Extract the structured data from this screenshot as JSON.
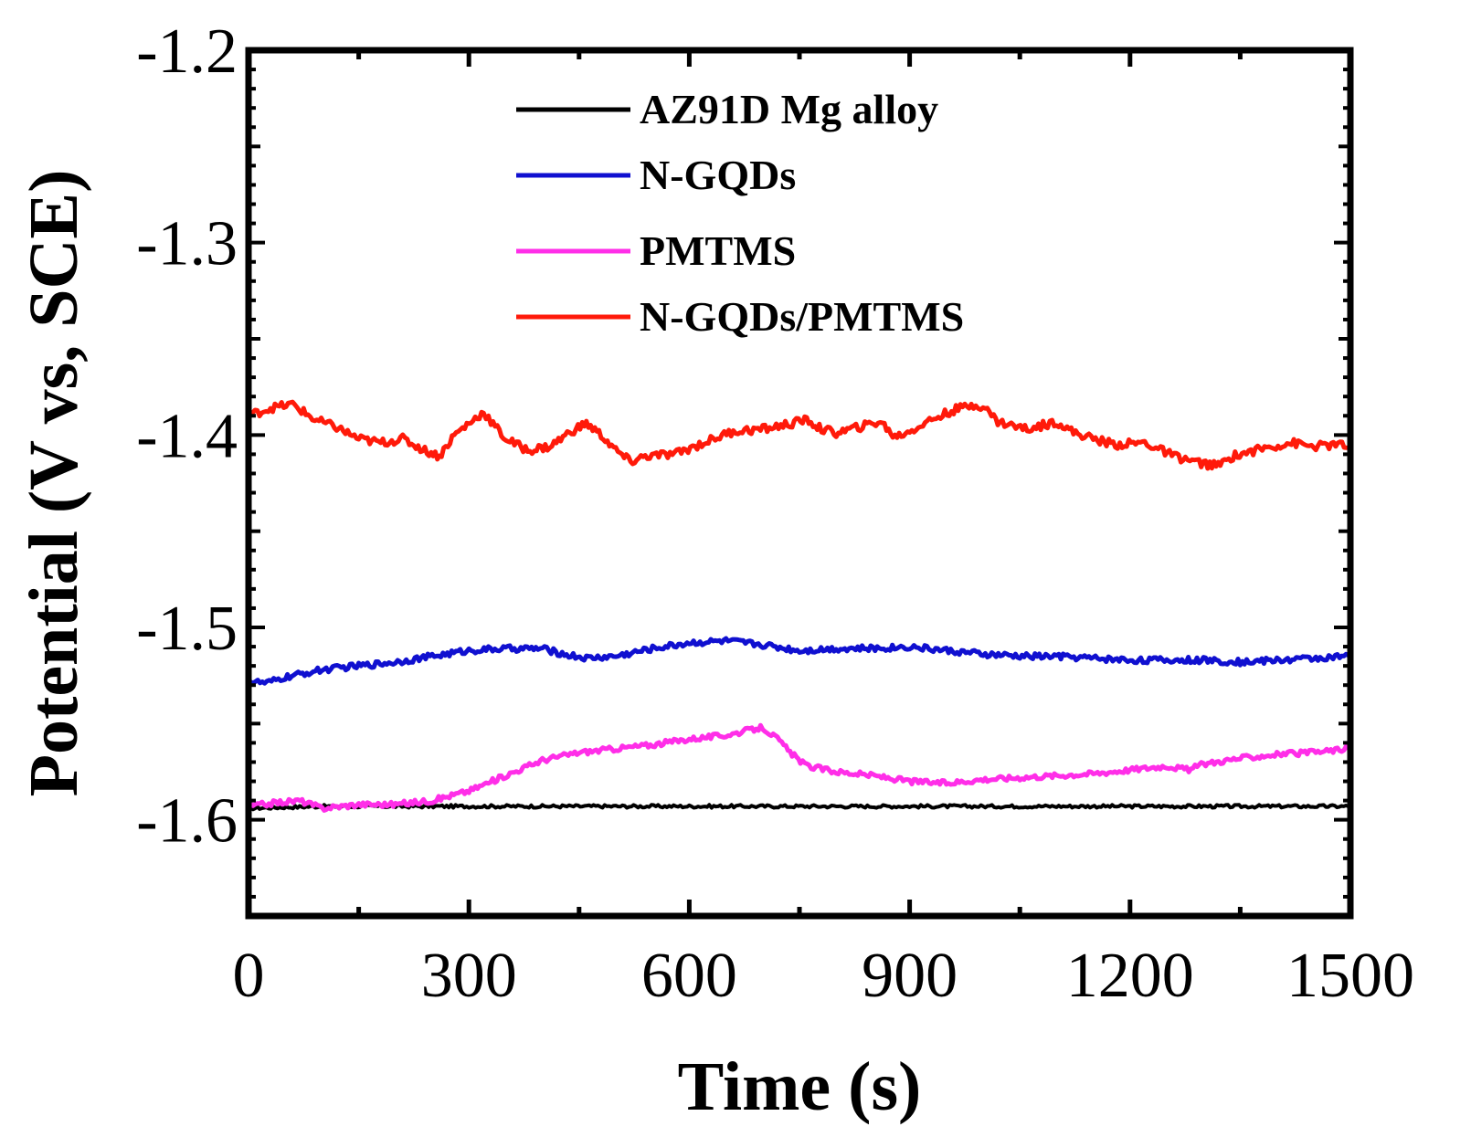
{
  "chart_data": {
    "type": "line",
    "xlabel": "Time (s)",
    "ylabel": "Potential (V vs, SCE)",
    "xlim": [
      0,
      1500
    ],
    "ylim": [
      -1.65,
      -1.2
    ],
    "xticks": [
      0,
      300,
      600,
      900,
      1200,
      1500
    ],
    "xtick_labels": [
      "0",
      "300",
      "600",
      "900",
      "1200",
      "1500"
    ],
    "yticks": [
      -1.6,
      -1.5,
      -1.4,
      -1.3,
      -1.2
    ],
    "ytick_labels": [
      "-1.6",
      "-1.5",
      "-1.4",
      "-1.3",
      "-1.2"
    ],
    "grid": false,
    "legend_position": "top-center",
    "series": [
      {
        "name": "AZ91D Mg alloy",
        "color": "#000000",
        "x": [
          0,
          100,
          200,
          300,
          400,
          500,
          600,
          700,
          800,
          900,
          1000,
          1100,
          1200,
          1300,
          1400,
          1500
        ],
        "y": [
          -1.594,
          -1.593,
          -1.593,
          -1.593,
          -1.593,
          -1.593,
          -1.593,
          -1.593,
          -1.593,
          -1.593,
          -1.593,
          -1.593,
          -1.593,
          -1.593,
          -1.593,
          -1.593
        ]
      },
      {
        "name": "N-GQDs",
        "color": "#1010d0",
        "x": [
          0,
          25,
          50,
          100,
          150,
          200,
          250,
          300,
          350,
          400,
          430,
          460,
          500,
          550,
          600,
          650,
          700,
          750,
          800,
          850,
          900,
          950,
          1000,
          1050,
          1100,
          1150,
          1200,
          1250,
          1300,
          1350,
          1400,
          1450,
          1500
        ],
        "y": [
          -1.528,
          -1.529,
          -1.526,
          -1.522,
          -1.52,
          -1.518,
          -1.515,
          -1.512,
          -1.511,
          -1.511,
          -1.514,
          -1.516,
          -1.515,
          -1.511,
          -1.508,
          -1.507,
          -1.509,
          -1.512,
          -1.511,
          -1.511,
          -1.51,
          -1.512,
          -1.514,
          -1.515,
          -1.515,
          -1.516,
          -1.517,
          -1.517,
          -1.517,
          -1.518,
          -1.517,
          -1.516,
          -1.515
        ]
      },
      {
        "name": "PMTMS",
        "color": "#ff2ee8",
        "x": [
          0,
          40,
          70,
          100,
          150,
          200,
          250,
          300,
          350,
          400,
          450,
          500,
          550,
          600,
          650,
          700,
          720,
          740,
          760,
          800,
          850,
          900,
          950,
          1000,
          1050,
          1100,
          1150,
          1200,
          1250,
          1280,
          1300,
          1350,
          1400,
          1450,
          1500
        ],
        "y": [
          -1.593,
          -1.591,
          -1.59,
          -1.594,
          -1.592,
          -1.592,
          -1.59,
          -1.585,
          -1.577,
          -1.569,
          -1.565,
          -1.563,
          -1.561,
          -1.558,
          -1.556,
          -1.552,
          -1.558,
          -1.566,
          -1.572,
          -1.575,
          -1.577,
          -1.58,
          -1.581,
          -1.579,
          -1.578,
          -1.577,
          -1.576,
          -1.574,
          -1.572,
          -1.574,
          -1.571,
          -1.568,
          -1.566,
          -1.565,
          -1.563
        ]
      },
      {
        "name": "N-GQDs/PMTMS",
        "color": "#ff1a0a",
        "x": [
          0,
          30,
          60,
          90,
          120,
          150,
          180,
          210,
          240,
          260,
          280,
          300,
          320,
          330,
          350,
          380,
          410,
          440,
          460,
          480,
          500,
          520,
          540,
          580,
          620,
          660,
          700,
          740,
          760,
          780,
          800,
          830,
          860,
          880,
          900,
          930,
          960,
          990,
          1000,
          1020,
          1060,
          1100,
          1120,
          1150,
          1180,
          1220,
          1260,
          1300,
          1320,
          1340,
          1380,
          1420,
          1450,
          1480,
          1500
        ],
        "y": [
          -1.39,
          -1.386,
          -1.384,
          -1.392,
          -1.396,
          -1.402,
          -1.404,
          -1.402,
          -1.408,
          -1.411,
          -1.4,
          -1.394,
          -1.388,
          -1.393,
          -1.402,
          -1.408,
          -1.406,
          -1.398,
          -1.394,
          -1.4,
          -1.408,
          -1.414,
          -1.411,
          -1.41,
          -1.404,
          -1.398,
          -1.397,
          -1.394,
          -1.392,
          -1.397,
          -1.399,
          -1.396,
          -1.393,
          -1.401,
          -1.398,
          -1.392,
          -1.387,
          -1.384,
          -1.385,
          -1.393,
          -1.397,
          -1.393,
          -1.398,
          -1.402,
          -1.405,
          -1.404,
          -1.411,
          -1.415,
          -1.416,
          -1.411,
          -1.407,
          -1.404,
          -1.406,
          -1.405,
          -1.406
        ]
      }
    ]
  }
}
